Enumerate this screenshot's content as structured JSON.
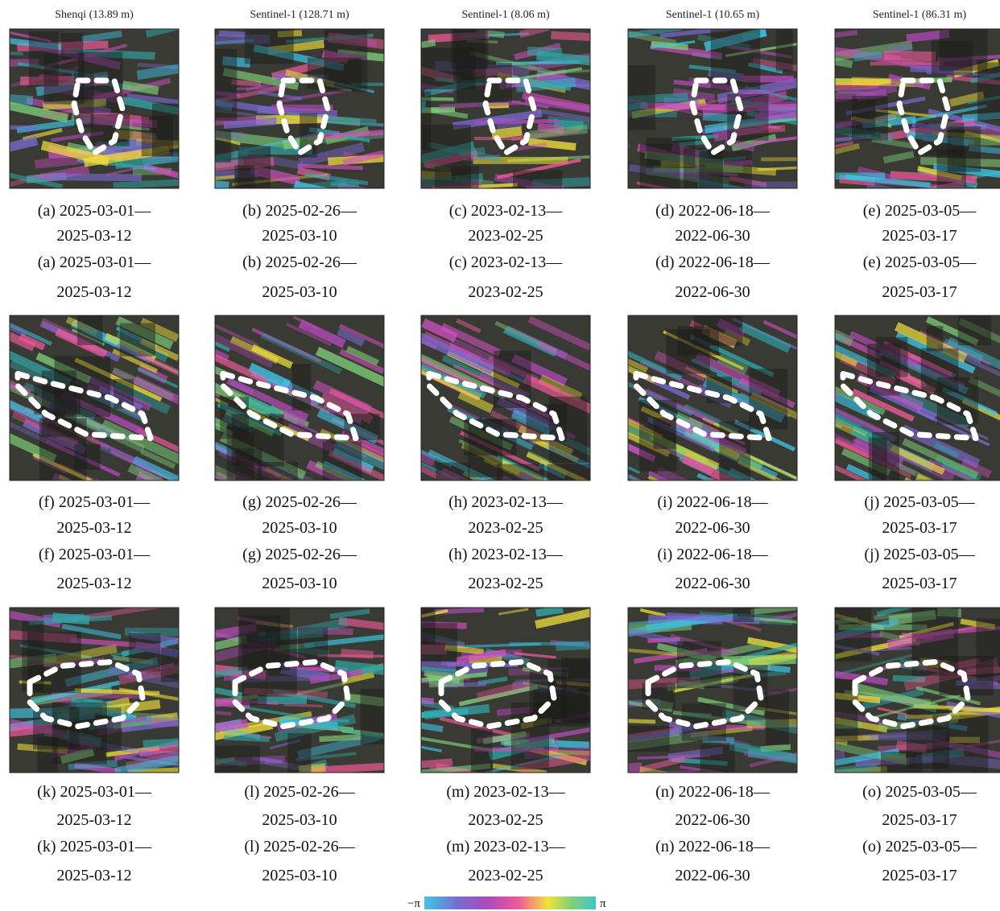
{
  "header": {
    "columns": [
      "Shenqi (13.89 m)",
      "Sentinel-1 (128.71 m)",
      "Sentinel-1 (8.06 m)",
      "Sentinel-1 (10.65 m)",
      "Sentinel-1 (86.31 m)"
    ]
  },
  "panels": [
    {
      "caption": [
        "(a) 2025-03-01—",
        "2025-03-12",
        "(a) 2025-03-01—",
        "2025-03-12"
      ]
    },
    {
      "caption": [
        "(b) 2025-02-26—",
        "2025-03-10",
        "(b) 2025-02-26—",
        "2025-03-10"
      ]
    },
    {
      "caption": [
        "(c) 2023-02-13—",
        "2023-02-25",
        "(c) 2023-02-13—",
        "2023-02-25"
      ]
    },
    {
      "caption": [
        "(d) 2022-06-18—",
        "2022-06-30",
        "(d) 2022-06-18—",
        "2022-06-30"
      ]
    },
    {
      "caption": [
        "(e) 2025-03-05—",
        "2025-03-17",
        "(e) 2025-03-05—",
        "2025-03-17"
      ]
    },
    {
      "caption": [
        "(f) 2025-03-01—",
        "2025-03-12",
        "(f) 2025-03-01—",
        "2025-03-12"
      ]
    },
    {
      "caption": [
        "(g) 2025-02-26—",
        "2025-03-10",
        "(g) 2025-02-26—",
        "2025-03-10"
      ]
    },
    {
      "caption": [
        "(h) 2023-02-13—",
        "2023-02-25",
        "(h) 2023-02-13—",
        "2023-02-25"
      ]
    },
    {
      "caption": [
        "(i) 2022-06-18—",
        "2022-06-30",
        "(i) 2022-06-18—",
        "2022-06-30"
      ]
    },
    {
      "caption": [
        "(j) 2025-03-05—",
        "2025-03-17",
        "(j) 2025-03-05—",
        "2025-03-17"
      ]
    },
    {
      "caption": [
        "(k) 2025-03-01—",
        "2025-03-12",
        "(k) 2025-03-01—",
        "2025-03-12"
      ]
    },
    {
      "caption": [
        "(l) 2025-02-26—",
        "2025-03-10",
        "(l) 2025-02-26—",
        "2025-03-10"
      ]
    },
    {
      "caption": [
        "(m) 2023-02-13—",
        "2023-02-25",
        "(m) 2023-02-13—",
        "2023-02-25"
      ]
    },
    {
      "caption": [
        "(n) 2022-06-18—",
        "2022-06-30",
        "(n) 2022-06-18—",
        "2022-06-30"
      ]
    },
    {
      "caption": [
        "(o) 2025-03-05—",
        "2025-03-17",
        "(o) 2025-03-05—",
        "2025-03-17"
      ]
    }
  ],
  "colorbar": {
    "min_label": "−π",
    "max_label": "π"
  }
}
